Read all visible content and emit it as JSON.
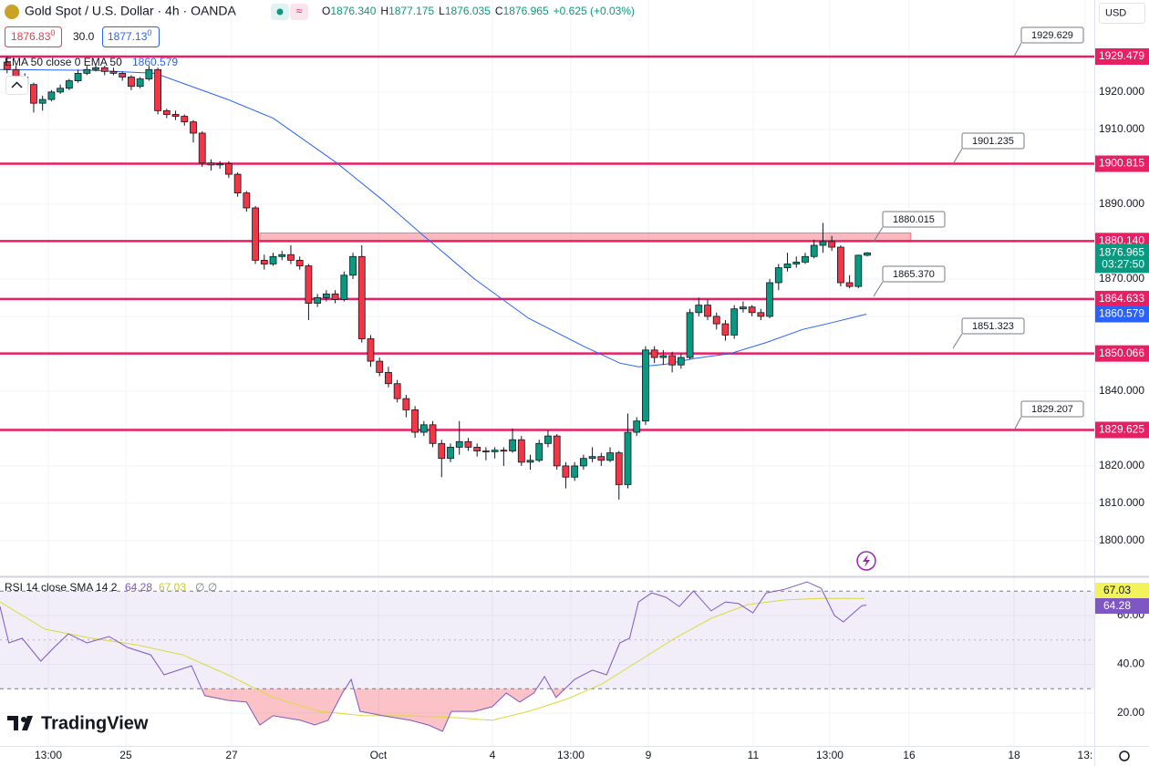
{
  "header": {
    "ohlc": [
      [
        "O",
        "1876.340"
      ],
      [
        "H",
        "1877.175"
      ],
      [
        "L",
        "1876.035"
      ],
      [
        "C",
        "1876.965"
      ]
    ],
    "change": "+0.625 (+0.03%)"
  },
  "trade": {
    "bid": "1876.83",
    "bid_sup": "0",
    "spread": "30.0",
    "ask": "1877.13",
    "ask_sup": "0"
  },
  "currency": "USD",
  "logo": "TradingView",
  "chart_data": {
    "type": "candlestick",
    "title": "Gold Spot / U.S. Dollar · 4h · OANDA",
    "up_color": "#089981",
    "down_color": "#f23645",
    "candles": [
      [
        1928,
        1929.5,
        1925,
        1926
      ],
      [
        1926,
        1927,
        1923.5,
        1924
      ],
      [
        1924,
        1925,
        1921,
        1922
      ],
      [
        1922,
        1922.5,
        1914.5,
        1917
      ],
      [
        1917,
        1919,
        1915,
        1918
      ],
      [
        1918,
        1920.5,
        1917.5,
        1920
      ],
      [
        1920,
        1922,
        1919.5,
        1921
      ],
      [
        1921,
        1923.5,
        1920.5,
        1923
      ],
      [
        1923,
        1926,
        1922.5,
        1925
      ],
      [
        1925,
        1927,
        1924.5,
        1926
      ],
      [
        1926,
        1927.5,
        1925.5,
        1926.5
      ],
      [
        1926.5,
        1927,
        1924.5,
        1925.5
      ],
      [
        1925.5,
        1926.5,
        1924.5,
        1925
      ],
      [
        1925,
        1925.5,
        1923,
        1924
      ],
      [
        1924,
        1924.5,
        1920.5,
        1921.5
      ],
      [
        1921.5,
        1924,
        1921,
        1923.5
      ],
      [
        1923.5,
        1927,
        1923,
        1926
      ],
      [
        1926,
        1926.5,
        1914,
        1915
      ],
      [
        1915,
        1915.5,
        1913,
        1914
      ],
      [
        1914,
        1915,
        1912.5,
        1913.5
      ],
      [
        1913.5,
        1914,
        1911,
        1912
      ],
      [
        1912,
        1912.5,
        1906.5,
        1909
      ],
      [
        1909,
        1909.5,
        1900,
        1901
      ],
      [
        1901,
        1902,
        1899,
        1900.5
      ],
      [
        1900.5,
        1901.5,
        1899.5,
        1900.8
      ],
      [
        1900.8,
        1901.5,
        1897,
        1898
      ],
      [
        1898,
        1898.5,
        1892,
        1893
      ],
      [
        1893,
        1893.5,
        1888,
        1889
      ],
      [
        1889,
        1889.5,
        1874,
        1875
      ],
      [
        1875,
        1876.5,
        1872.5,
        1874
      ],
      [
        1874,
        1877,
        1873.5,
        1876
      ],
      [
        1876,
        1877.5,
        1875,
        1876.5
      ],
      [
        1876.5,
        1879,
        1874,
        1875
      ],
      [
        1875,
        1876,
        1872.5,
        1873.5
      ],
      [
        1873.5,
        1874,
        1859,
        1863.5
      ],
      [
        1863.5,
        1866,
        1862.5,
        1865
      ],
      [
        1865,
        1867,
        1864,
        1866
      ],
      [
        1866,
        1867,
        1863.5,
        1864.5
      ],
      [
        1864.5,
        1872,
        1864,
        1871
      ],
      [
        1871,
        1877,
        1870,
        1876
      ],
      [
        1876,
        1879,
        1853,
        1854
      ],
      [
        1854,
        1855,
        1846.5,
        1848
      ],
      [
        1848,
        1849,
        1844,
        1845
      ],
      [
        1845,
        1846.5,
        1841,
        1842
      ],
      [
        1842,
        1843,
        1837,
        1838
      ],
      [
        1838,
        1839,
        1833,
        1835
      ],
      [
        1835,
        1836,
        1827.5,
        1829
      ],
      [
        1829,
        1832,
        1828,
        1831
      ],
      [
        1831,
        1832,
        1825,
        1826
      ],
      [
        1826,
        1827,
        1817,
        1822
      ],
      [
        1822,
        1826,
        1821,
        1825
      ],
      [
        1825,
        1832,
        1823,
        1826.5
      ],
      [
        1826.5,
        1827.5,
        1824,
        1825
      ],
      [
        1825,
        1826,
        1822.5,
        1824
      ],
      [
        1824,
        1825,
        1821.5,
        1823.8
      ],
      [
        1823.8,
        1825,
        1822,
        1824.2
      ],
      [
        1824.2,
        1825,
        1820,
        1824
      ],
      [
        1824,
        1830,
        1823.5,
        1827
      ],
      [
        1827,
        1828,
        1820,
        1821
      ],
      [
        1821,
        1823,
        1819,
        1821.5
      ],
      [
        1821.5,
        1827,
        1821,
        1826
      ],
      [
        1826,
        1829.5,
        1825,
        1828
      ],
      [
        1828,
        1828.5,
        1819,
        1820
      ],
      [
        1820,
        1821,
        1814,
        1817
      ],
      [
        1817,
        1821,
        1816,
        1820
      ],
      [
        1820,
        1823,
        1819,
        1822
      ],
      [
        1822,
        1825,
        1821,
        1822.5
      ],
      [
        1822.5,
        1823.5,
        1820,
        1821.5
      ],
      [
        1821.5,
        1825,
        1821,
        1823.5
      ],
      [
        1823.5,
        1824,
        1811,
        1815
      ],
      [
        1815,
        1834,
        1814,
        1829
      ],
      [
        1829,
        1833,
        1828,
        1832
      ],
      [
        1832,
        1852,
        1831,
        1851
      ],
      [
        1851,
        1852,
        1847.5,
        1849
      ],
      [
        1849,
        1851,
        1847,
        1849.5
      ],
      [
        1849.5,
        1850.5,
        1845,
        1847
      ],
      [
        1847,
        1850,
        1846,
        1849
      ],
      [
        1849,
        1862,
        1848.5,
        1861
      ],
      [
        1861,
        1865,
        1860,
        1863
      ],
      [
        1863,
        1864.5,
        1859,
        1860
      ],
      [
        1860,
        1861,
        1856.5,
        1858
      ],
      [
        1858,
        1859,
        1853.5,
        1855
      ],
      [
        1855,
        1863,
        1854,
        1862
      ],
      [
        1862,
        1864,
        1861,
        1862.5
      ],
      [
        1862.5,
        1863,
        1860,
        1861
      ],
      [
        1861,
        1862,
        1859,
        1860
      ],
      [
        1860,
        1870,
        1859.5,
        1869
      ],
      [
        1869,
        1874,
        1867,
        1873
      ],
      [
        1873,
        1877,
        1872,
        1874
      ],
      [
        1874,
        1876,
        1873,
        1874.5
      ],
      [
        1874.5,
        1877,
        1874,
        1876
      ],
      [
        1876,
        1880.5,
        1875.5,
        1879
      ],
      [
        1879,
        1885,
        1877,
        1880
      ],
      [
        1880,
        1881.5,
        1877.5,
        1878.5
      ],
      [
        1878.5,
        1879,
        1868,
        1869
      ],
      [
        1869,
        1871,
        1867.5,
        1868
      ],
      [
        1868,
        1876.5,
        1867.5,
        1876.34
      ],
      [
        1876.34,
        1877.175,
        1876.035,
        1876.965
      ]
    ],
    "xlim": [
      -0.8,
      122.6
    ],
    "xticks": [
      {
        "value": 4.65,
        "label": "13:00"
      },
      {
        "value": 13.39,
        "label": "25"
      },
      {
        "value": 25.32,
        "label": "27"
      },
      {
        "value": 41.87,
        "label": "Oct"
      },
      {
        "value": 54.73,
        "label": "4"
      },
      {
        "value": 63.57,
        "label": "13:00"
      },
      {
        "value": 72.31,
        "label": "9"
      },
      {
        "value": 84.13,
        "label": "11"
      },
      {
        "value": 92.77,
        "label": "13:00"
      },
      {
        "value": 101.72,
        "label": "16"
      },
      {
        "value": 113.55,
        "label": "18"
      },
      {
        "value": 121.56,
        "label": "13:"
      }
    ],
    "ylim": [
      1793.4,
      1944.6
    ],
    "yticks": [
      {
        "value": 1800,
        "label": "1800.000"
      },
      {
        "value": 1810,
        "label": "1810.000"
      },
      {
        "value": 1820,
        "label": "1820.000"
      },
      {
        "value": 1830,
        "label": "1830.000"
      },
      {
        "value": 1840,
        "label": "1840.000"
      },
      {
        "value": 1850,
        "label": "1850.000"
      },
      {
        "value": 1860,
        "label": "1860.000"
      },
      {
        "value": 1870,
        "label": "1870.000"
      },
      {
        "value": 1880,
        "label": "1880.000"
      },
      {
        "value": 1890,
        "label": "1890.000"
      },
      {
        "value": 1900,
        "label": "1900.000"
      },
      {
        "value": 1910,
        "label": "1910.000"
      },
      {
        "value": 1920,
        "label": "1920.000"
      }
    ],
    "grid": true,
    "ema": {
      "name": "EMA 50 close 0 EMA 50",
      "color": "#2962ff",
      "value_label": "1860.579",
      "x": [
        -0.8,
        9.5,
        16.7,
        24.9,
        30,
        37.2,
        42.4,
        46.5,
        52.7,
        58.8,
        65,
        69.1,
        71.2,
        74.3,
        77.4,
        81.5,
        85.6,
        89.7,
        92.8,
        96.9
      ],
      "values": [
        1926,
        1925.8,
        1925,
        1918,
        1913,
        1901,
        1891,
        1882.5,
        1870,
        1859.5,
        1852,
        1847.5,
        1846.5,
        1847.2,
        1848.7,
        1850,
        1853,
        1856.5,
        1858.2,
        1860.579
      ]
    },
    "levels": {
      "color": "#e91e63",
      "items": [
        {
          "value": 1929.479,
          "label": "1929.479"
        },
        {
          "value": 1900.815,
          "label": "1900.815"
        },
        {
          "value": 1880.14,
          "label": "1880.140"
        },
        {
          "value": 1864.633,
          "label": "1864.633"
        },
        {
          "value": 1850.066,
          "label": "1850.066"
        },
        {
          "value": 1829.625,
          "label": "1829.625"
        }
      ]
    },
    "zone": {
      "x": [
        28.5,
        101.9
      ],
      "low": 1880.14,
      "high": 1882.3
    },
    "callouts": [
      "1929.629",
      "1901.235",
      "1880.015",
      "1865.370",
      "1851.323",
      "1829.207"
    ],
    "last_price": {
      "value": 1876.965,
      "label": "1876.965",
      "countdown": "03:27:50"
    },
    "rsi": {
      "name": "RSI 14 close SMA 14 2",
      "value_label": "64.28",
      "sma_label": "67.03",
      "extra": "∅ ∅",
      "color": "#7e57c2",
      "sma_color": "#dada3c",
      "ylim": [
        6.5,
        76.1
      ],
      "yticks": [
        {
          "value": 20,
          "label": "20.00"
        },
        {
          "value": 40,
          "label": "40.00"
        },
        {
          "value": 60,
          "label": "60.00"
        }
      ],
      "bands": [
        70,
        50,
        30
      ],
      "x": [
        -0.8,
        0.2,
        1.7,
        3.8,
        5.3,
        6.9,
        9,
        11.5,
        13.6,
        16.2,
        17.7,
        20.8,
        22.3,
        24.9,
        27,
        28.5,
        30,
        33.1,
        34.7,
        36.2,
        37.8,
        38.8,
        39.8,
        42.4,
        45.5,
        47.5,
        49.1,
        50.1,
        52.7,
        54.7,
        56.3,
        57.8,
        59.4,
        60.6,
        61.9,
        64,
        66,
        67.6,
        69.1,
        70.2,
        71.2,
        72.7,
        74.3,
        75.8,
        77.4,
        79.4,
        81,
        82.5,
        84.1,
        85.6,
        87.7,
        90.2,
        91.8,
        93.3,
        94.3,
        96.4,
        96.9
      ],
      "values": [
        63.7,
        48.8,
        50.7,
        41.3,
        46.9,
        52.5,
        48.8,
        51.4,
        46.9,
        43.9,
        35.7,
        39.4,
        27.1,
        25.2,
        24.5,
        15.1,
        18.9,
        17,
        15.1,
        17,
        28.2,
        33.8,
        20.7,
        18.9,
        17,
        15.1,
        12.5,
        20.7,
        20.7,
        22.6,
        28.2,
        24.5,
        28.2,
        35,
        26.4,
        33.8,
        37.6,
        35.7,
        48.8,
        50.7,
        65.6,
        69.3,
        67.5,
        63.7,
        70.1,
        61.9,
        65.6,
        64.9,
        61.1,
        69.3,
        70.8,
        73.8,
        71.2,
        60,
        57.4,
        64.1,
        64.28
      ],
      "sma_x": [
        -0.8,
        4.3,
        9.5,
        14.6,
        19.8,
        24.9,
        30,
        35.2,
        40.3,
        45.5,
        50.6,
        54.7,
        58.8,
        63,
        67.1,
        71.2,
        75.3,
        79.4,
        83.5,
        87.7,
        91.8,
        96.7
      ],
      "sma_values": [
        65.6,
        54.4,
        50.7,
        48,
        43.9,
        35.7,
        26.4,
        20.7,
        18.9,
        18.9,
        18.1,
        17,
        20.7,
        25.6,
        32,
        41.3,
        50.7,
        58.9,
        64.5,
        66.4,
        67.1,
        67.03
      ]
    }
  }
}
